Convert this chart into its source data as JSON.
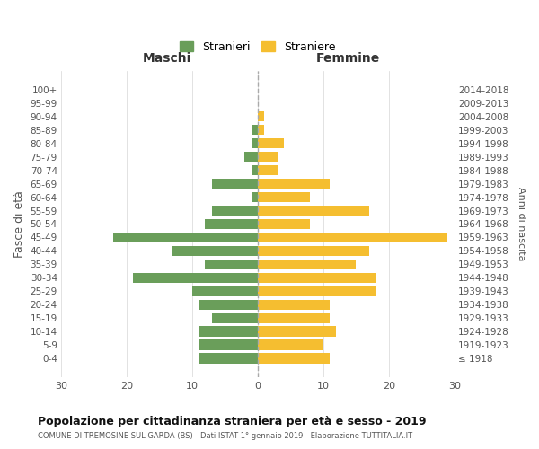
{
  "age_groups": [
    "100+",
    "95-99",
    "90-94",
    "85-89",
    "80-84",
    "75-79",
    "70-74",
    "65-69",
    "60-64",
    "55-59",
    "50-54",
    "45-49",
    "40-44",
    "35-39",
    "30-34",
    "25-29",
    "20-24",
    "15-19",
    "10-14",
    "5-9",
    "0-4"
  ],
  "birth_years": [
    "≤ 1918",
    "1919-1923",
    "1924-1928",
    "1929-1933",
    "1934-1938",
    "1939-1943",
    "1944-1948",
    "1949-1953",
    "1954-1958",
    "1959-1963",
    "1964-1968",
    "1969-1973",
    "1974-1978",
    "1979-1983",
    "1984-1988",
    "1989-1993",
    "1994-1998",
    "1999-2003",
    "2004-2008",
    "2009-2013",
    "2014-2018"
  ],
  "males": [
    0,
    0,
    0,
    1,
    1,
    2,
    1,
    7,
    1,
    7,
    8,
    22,
    13,
    8,
    19,
    10,
    9,
    7,
    9,
    9,
    9
  ],
  "females": [
    0,
    0,
    1,
    1,
    4,
    3,
    3,
    11,
    8,
    17,
    8,
    29,
    17,
    15,
    18,
    18,
    11,
    11,
    12,
    10,
    11
  ],
  "male_color": "#6a9e5a",
  "female_color": "#f5be30",
  "background_color": "#ffffff",
  "grid_color": "#cccccc",
  "title": "Popolazione per cittadinanza straniera per età e sesso - 2019",
  "subtitle": "COMUNE DI TREMOSINE SUL GARDA (BS) - Dati ISTAT 1° gennaio 2019 - Elaborazione TUTTITALIA.IT",
  "xlabel_left": "Maschi",
  "xlabel_right": "Femmine",
  "ylabel": "Fasce di età",
  "ylabel_right": "Anni di nascita",
  "legend_male": "Stranieri",
  "legend_female": "Straniere",
  "xlim": 30
}
